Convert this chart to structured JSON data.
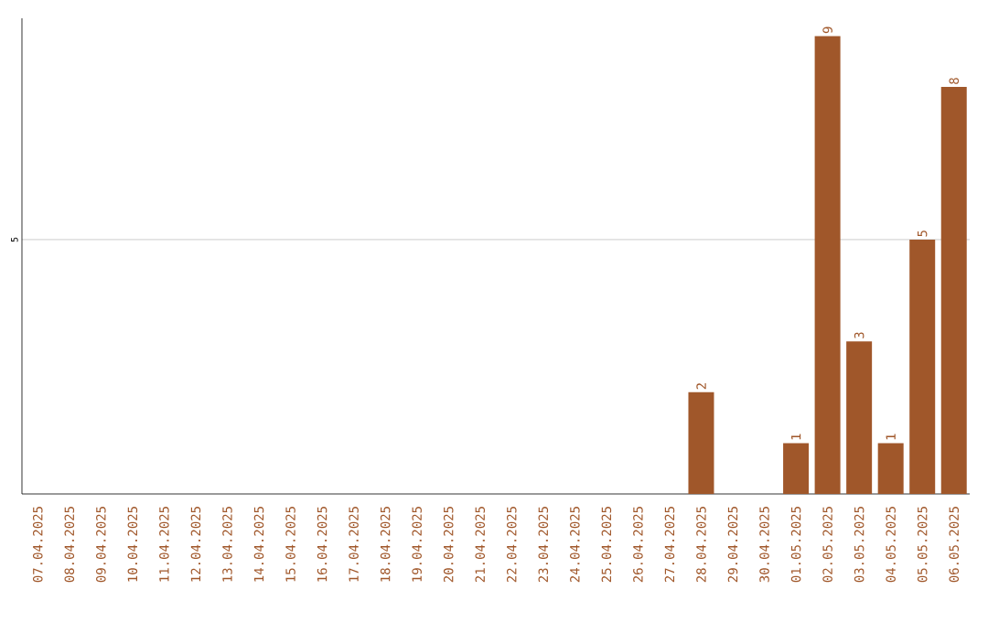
{
  "chart_data": {
    "type": "bar",
    "categories": [
      "07.04.2025",
      "08.04.2025",
      "09.04.2025",
      "10.04.2025",
      "11.04.2025",
      "12.04.2025",
      "13.04.2025",
      "14.04.2025",
      "15.04.2025",
      "16.04.2025",
      "17.04.2025",
      "18.04.2025",
      "19.04.2025",
      "20.04.2025",
      "21.04.2025",
      "22.04.2025",
      "23.04.2025",
      "24.04.2025",
      "25.04.2025",
      "26.04.2025",
      "27.04.2025",
      "28.04.2025",
      "29.04.2025",
      "30.04.2025",
      "01.05.2025",
      "02.05.2025",
      "03.05.2025",
      "04.05.2025",
      "05.05.2025",
      "06.05.2025"
    ],
    "values": [
      null,
      null,
      null,
      null,
      null,
      null,
      null,
      null,
      null,
      null,
      null,
      null,
      null,
      null,
      null,
      null,
      null,
      null,
      null,
      null,
      null,
      2,
      null,
      null,
      1,
      9,
      3,
      1,
      5,
      8
    ],
    "data_labels": true,
    "color": "#a0572a",
    "ylim": [
      0,
      9.35
    ],
    "yticks": [
      5
    ],
    "grid": "y"
  }
}
